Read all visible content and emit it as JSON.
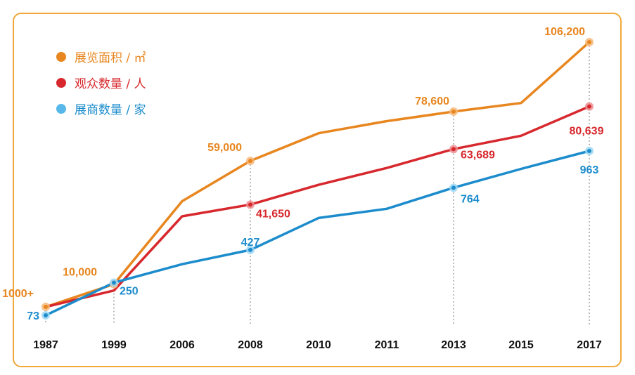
{
  "chart_data": {
    "type": "line",
    "categories": [
      "1987",
      "1999",
      "2006",
      "2008",
      "2010",
      "2011",
      "2013",
      "2015",
      "2017"
    ],
    "series": [
      {
        "name": "展览面积 / ㎡",
        "color": "#e8861f",
        "values": [
          1000,
          10000,
          43000,
          59000,
          70000,
          74800,
          78600,
          82000,
          106200
        ],
        "labels": [
          "1000+",
          "10,000",
          null,
          "59,000",
          null,
          null,
          "78,600",
          null,
          "106,200"
        ]
      },
      {
        "name": "观众数量 / 人",
        "color": "#d7282d",
        "values": [
          1000,
          7500,
          37000,
          41650,
          49500,
          56200,
          63689,
          69000,
          80639
        ],
        "labels": [
          null,
          null,
          null,
          "41,650",
          null,
          null,
          "63,689",
          null,
          "80,639"
        ]
      },
      {
        "name": "展商数量 / 家",
        "color": "#1c8ccc",
        "values": [
          73,
          250,
          350,
          427,
          600,
          650,
          764,
          866,
          963
        ],
        "labels": [
          "73",
          "250",
          null,
          "427",
          null,
          null,
          "764",
          null,
          "963"
        ]
      }
    ],
    "xlabel": "",
    "ylabel": "",
    "grid": false,
    "legend": "top-left"
  }
}
